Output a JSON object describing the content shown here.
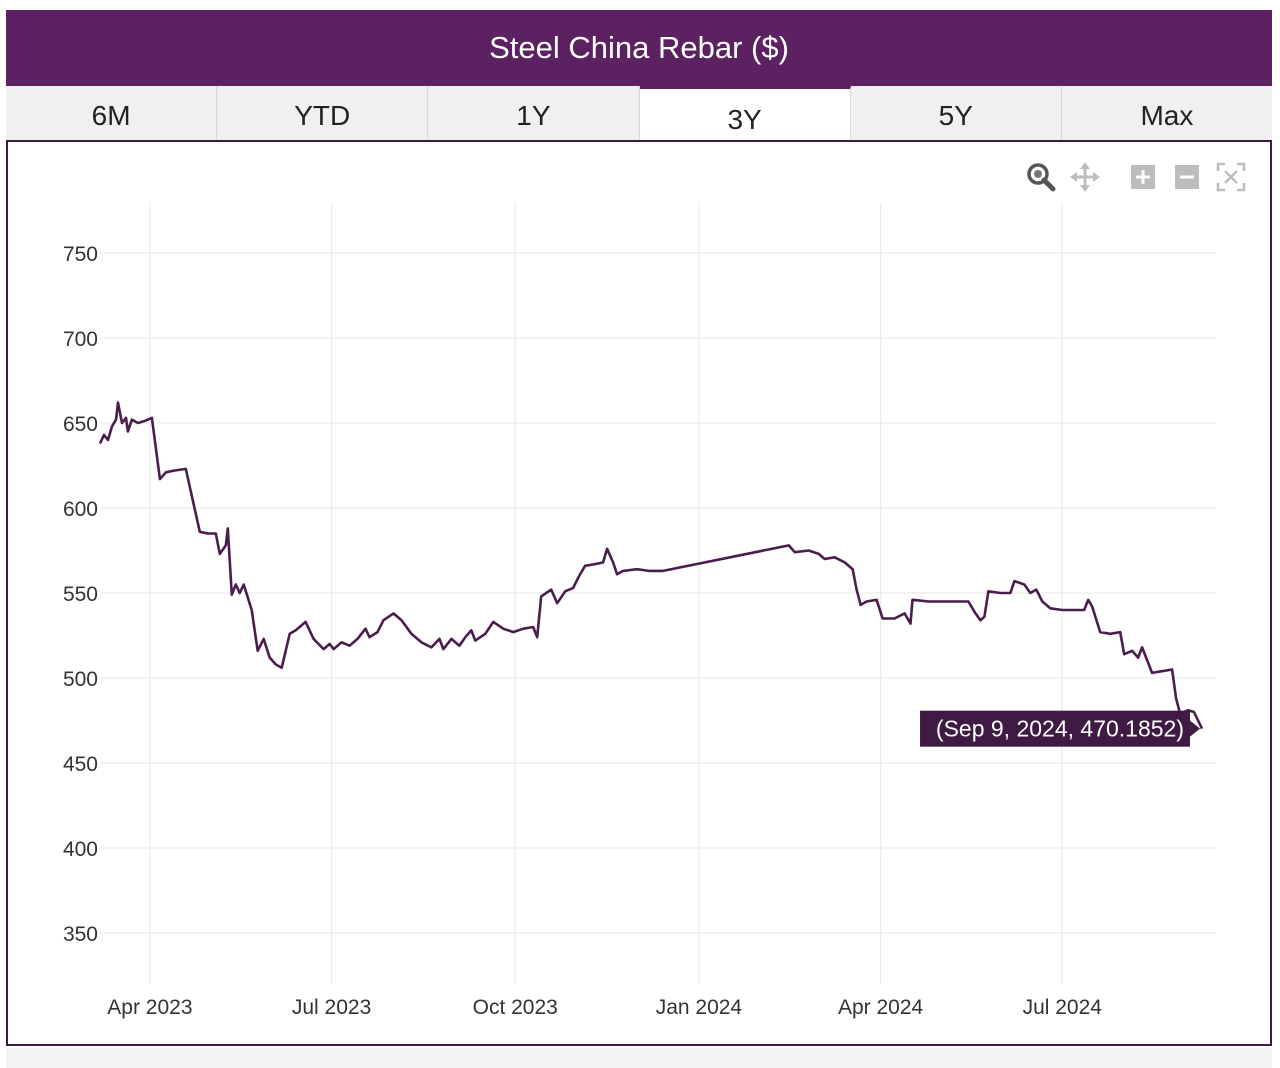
{
  "title": "Steel China Rebar ($)",
  "tabs": [
    {
      "label": "6M",
      "active": false
    },
    {
      "label": "YTD",
      "active": false
    },
    {
      "label": "1Y",
      "active": false
    },
    {
      "label": "3Y",
      "active": true
    },
    {
      "label": "5Y",
      "active": false
    },
    {
      "label": "Max",
      "active": false
    }
  ],
  "modebar": [
    "zoom-icon",
    "pan-icon",
    "zoom-in-icon",
    "zoom-out-icon",
    "autoscale-icon"
  ],
  "colors": {
    "brand": "#5b2161",
    "line": "#4a1d4c",
    "grid": "#ececec"
  },
  "tooltip": {
    "text": "(Sep 9, 2024, 470.1852)",
    "x": "2024-09-09",
    "y": 470.1852
  },
  "chart_data": {
    "type": "line",
    "xlim": [
      "2023-03-07",
      "2024-09-16"
    ],
    "ylim": [
      320,
      780
    ],
    "yticks": [
      350,
      400,
      450,
      500,
      550,
      600,
      650,
      700,
      750
    ],
    "xticks": [
      {
        "date": "2023-04-01",
        "label": "Apr 2023"
      },
      {
        "date": "2023-07-01",
        "label": "Jul 2023"
      },
      {
        "date": "2023-10-01",
        "label": "Oct 2023"
      },
      {
        "date": "2024-01-01",
        "label": "Jan 2024"
      },
      {
        "date": "2024-04-01",
        "label": "Apr 2024"
      },
      {
        "date": "2024-07-01",
        "label": "Jul 2024"
      }
    ],
    "grid": true,
    "series": [
      {
        "points": [
          [
            "2023-03-07",
            638
          ],
          [
            "2023-03-09",
            643
          ],
          [
            "2023-03-11",
            640
          ],
          [
            "2023-03-13",
            648
          ],
          [
            "2023-03-15",
            652
          ],
          [
            "2023-03-16",
            662
          ],
          [
            "2023-03-18",
            650
          ],
          [
            "2023-03-20",
            653
          ],
          [
            "2023-03-21",
            645
          ],
          [
            "2023-03-23",
            652
          ],
          [
            "2023-03-26",
            650
          ],
          [
            "2023-03-29",
            651
          ],
          [
            "2023-04-02",
            653
          ],
          [
            "2023-04-06",
            617
          ],
          [
            "2023-04-09",
            621
          ],
          [
            "2023-04-13",
            622
          ],
          [
            "2023-04-19",
            623
          ],
          [
            "2023-04-26",
            586
          ],
          [
            "2023-04-30",
            585
          ],
          [
            "2023-05-04",
            585
          ],
          [
            "2023-05-06",
            573
          ],
          [
            "2023-05-09",
            578
          ],
          [
            "2023-05-10",
            588
          ],
          [
            "2023-05-12",
            549
          ],
          [
            "2023-05-14",
            555
          ],
          [
            "2023-05-16",
            550
          ],
          [
            "2023-05-18",
            555
          ],
          [
            "2023-05-22",
            540
          ],
          [
            "2023-05-25",
            516
          ],
          [
            "2023-05-28",
            523
          ],
          [
            "2023-05-31",
            512
          ],
          [
            "2023-06-03",
            508
          ],
          [
            "2023-06-06",
            506
          ],
          [
            "2023-06-10",
            526
          ],
          [
            "2023-06-13",
            528
          ],
          [
            "2023-06-18",
            533
          ],
          [
            "2023-06-22",
            523
          ],
          [
            "2023-06-27",
            517
          ],
          [
            "2023-06-30",
            520
          ],
          [
            "2023-07-02",
            517
          ],
          [
            "2023-07-06",
            521
          ],
          [
            "2023-07-10",
            519
          ],
          [
            "2023-07-14",
            523
          ],
          [
            "2023-07-18",
            529
          ],
          [
            "2023-07-20",
            524
          ],
          [
            "2023-07-24",
            527
          ],
          [
            "2023-07-27",
            534
          ],
          [
            "2023-08-01",
            538
          ],
          [
            "2023-08-05",
            534
          ],
          [
            "2023-08-10",
            526
          ],
          [
            "2023-08-15",
            521
          ],
          [
            "2023-08-20",
            518
          ],
          [
            "2023-08-24",
            523
          ],
          [
            "2023-08-26",
            517
          ],
          [
            "2023-08-30",
            523
          ],
          [
            "2023-09-03",
            519
          ],
          [
            "2023-09-06",
            524
          ],
          [
            "2023-09-09",
            528
          ],
          [
            "2023-09-11",
            522
          ],
          [
            "2023-09-16",
            526
          ],
          [
            "2023-09-20",
            533
          ],
          [
            "2023-09-25",
            529
          ],
          [
            "2023-09-30",
            527
          ],
          [
            "2023-10-05",
            529
          ],
          [
            "2023-10-10",
            530
          ],
          [
            "2023-10-12",
            524
          ],
          [
            "2023-10-14",
            548
          ],
          [
            "2023-10-19",
            552
          ],
          [
            "2023-10-22",
            544
          ],
          [
            "2023-10-26",
            551
          ],
          [
            "2023-10-30",
            553
          ],
          [
            "2023-11-02",
            560
          ],
          [
            "2023-11-05",
            566
          ],
          [
            "2023-11-10",
            567
          ],
          [
            "2023-11-14",
            568
          ],
          [
            "2023-11-16",
            576
          ],
          [
            "2023-11-19",
            568
          ],
          [
            "2023-11-21",
            561
          ],
          [
            "2023-11-24",
            563
          ],
          [
            "2023-12-01",
            564
          ],
          [
            "2023-12-07",
            563
          ],
          [
            "2023-12-14",
            563
          ],
          [
            "2024-02-15",
            578
          ],
          [
            "2024-02-18",
            574
          ],
          [
            "2024-02-25",
            575
          ],
          [
            "2024-03-01",
            573
          ],
          [
            "2024-03-04",
            570
          ],
          [
            "2024-03-09",
            571
          ],
          [
            "2024-03-14",
            568
          ],
          [
            "2024-03-18",
            564
          ],
          [
            "2024-03-20",
            552
          ],
          [
            "2024-03-22",
            543
          ],
          [
            "2024-03-25",
            545
          ],
          [
            "2024-03-30",
            546
          ],
          [
            "2024-04-02",
            535
          ],
          [
            "2024-04-08",
            535
          ],
          [
            "2024-04-13",
            538
          ],
          [
            "2024-04-16",
            532
          ],
          [
            "2024-04-17",
            546
          ],
          [
            "2024-04-25",
            545
          ],
          [
            "2024-05-05",
            545
          ],
          [
            "2024-05-15",
            545
          ],
          [
            "2024-05-18",
            539
          ],
          [
            "2024-05-21",
            534
          ],
          [
            "2024-05-23",
            536
          ],
          [
            "2024-05-25",
            551
          ],
          [
            "2024-05-31",
            550
          ],
          [
            "2024-06-05",
            550
          ],
          [
            "2024-06-07",
            557
          ],
          [
            "2024-06-12",
            555
          ],
          [
            "2024-06-15",
            550
          ],
          [
            "2024-06-18",
            552
          ],
          [
            "2024-06-21",
            545
          ],
          [
            "2024-06-25",
            541
          ],
          [
            "2024-07-01",
            540
          ],
          [
            "2024-07-08",
            540
          ],
          [
            "2024-07-12",
            540
          ],
          [
            "2024-07-14",
            546
          ],
          [
            "2024-07-16",
            542
          ],
          [
            "2024-07-20",
            527
          ],
          [
            "2024-07-25",
            526
          ],
          [
            "2024-07-30",
            527
          ],
          [
            "2024-08-01",
            514
          ],
          [
            "2024-08-05",
            516
          ],
          [
            "2024-08-08",
            512
          ],
          [
            "2024-08-10",
            518
          ],
          [
            "2024-08-15",
            503
          ],
          [
            "2024-08-20",
            504
          ],
          [
            "2024-08-25",
            505
          ],
          [
            "2024-08-27",
            488
          ],
          [
            "2024-08-29",
            479
          ],
          [
            "2024-09-02",
            481
          ],
          [
            "2024-09-05",
            480
          ],
          [
            "2024-09-09",
            470.1852
          ]
        ]
      }
    ]
  }
}
